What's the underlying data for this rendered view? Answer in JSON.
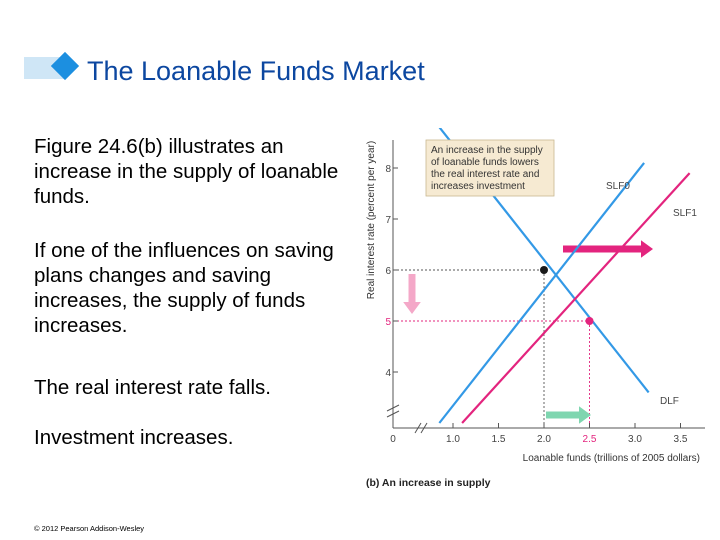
{
  "slide": {
    "title": "The Loanable Funds Market",
    "paragraphs": [
      "Figure 24.6(b) illustrates an increase in the supply of loanable funds.",
      "If one of the influences on saving plans changes and saving increases, the supply of funds increases.",
      "The real interest rate falls.",
      "Investment increases."
    ],
    "copyright": "© 2012 Pearson Addison-Wesley"
  },
  "colors": {
    "title": "#0c47a0",
    "accent_blue": "#1c8fe0",
    "title_strip": "#cfe6f6",
    "dlf_line": "#3399e6",
    "slf_line": "#e3247e",
    "slf_arrow": "#e3247e",
    "rate_arrow": "#f4a8c8",
    "investment_arrow": "#7fd6b0",
    "callout_fill": "#f6ead2",
    "equilibrium_point": "#1a1a1a"
  },
  "chart_data": {
    "type": "line",
    "title": "",
    "caption": "(b) An increase in supply",
    "xlabel": "Loanable funds (trillions of 2005 dollars)",
    "ylabel": "Real interest rate (percent per year)",
    "xlim": [
      0,
      3.5
    ],
    "ylim": [
      3.5,
      8.5
    ],
    "x_ticks": [
      "0",
      "1.0",
      "1.5",
      "2.0",
      "2.5",
      "3.0",
      "3.5"
    ],
    "y_ticks": [
      "4",
      "5",
      "6",
      "7",
      "8"
    ],
    "series": [
      {
        "name": "DLF",
        "x": [
          0.85,
          3.15
        ],
        "y": [
          8.8,
          3.6
        ]
      },
      {
        "name": "SLF0",
        "x": [
          0.85,
          3.1
        ],
        "y": [
          3.0,
          8.1
        ]
      },
      {
        "name": "SLF1",
        "x": [
          1.1,
          3.6
        ],
        "y": [
          3.0,
          7.9
        ]
      }
    ],
    "points": [
      {
        "x": 2.0,
        "y": 6.0
      },
      {
        "x": 2.5,
        "y": 5.0
      }
    ],
    "annotation": "An increase in the supply of loanable funds lowers the real interest rate and increases investment"
  }
}
